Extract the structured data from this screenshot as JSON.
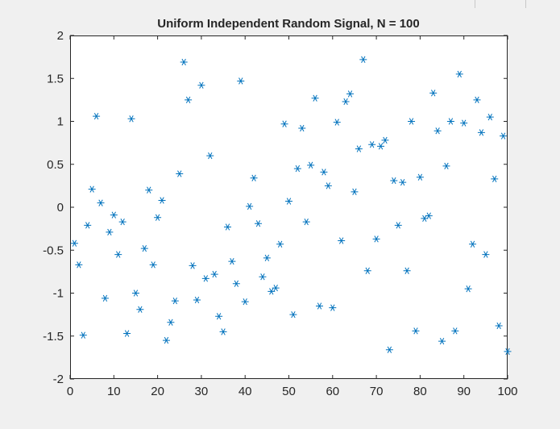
{
  "chart_data": {
    "type": "scatter",
    "title": "Uniform Independent Random Signal, N = 100",
    "xlabel": "",
    "ylabel": "",
    "xlim": [
      0,
      100
    ],
    "ylim": [
      -2,
      2
    ],
    "xticks": [
      0,
      10,
      20,
      30,
      40,
      50,
      60,
      70,
      80,
      90,
      100
    ],
    "yticks": [
      -2,
      -1.5,
      -1,
      -0.5,
      0,
      0.5,
      1,
      1.5,
      2
    ],
    "grid": false,
    "marker": "asterisk",
    "marker_color": "#0072bd",
    "series": [
      {
        "x": [
          1,
          2,
          3,
          4,
          5,
          6,
          7,
          8,
          9,
          10,
          11,
          12,
          13,
          14,
          15,
          16,
          17,
          18,
          19,
          20,
          21,
          22,
          23,
          24,
          25,
          26,
          27,
          28,
          29,
          30,
          31,
          32,
          33,
          34,
          35,
          36,
          37,
          38,
          39,
          40,
          41,
          42,
          43,
          44,
          45,
          46,
          47,
          48,
          49,
          50,
          51,
          52,
          53,
          54,
          55,
          56,
          57,
          58,
          59,
          60,
          61,
          62,
          63,
          64,
          65,
          66,
          67,
          68,
          69,
          70,
          71,
          72,
          73,
          74,
          75,
          76,
          77,
          78,
          79,
          80,
          81,
          82,
          83,
          84,
          85,
          86,
          87,
          88,
          89,
          90,
          91,
          92,
          93,
          94,
          95,
          96,
          97,
          98,
          99,
          100
        ],
        "y": [
          -0.42,
          -0.67,
          -1.49,
          -0.21,
          0.21,
          1.06,
          0.05,
          -1.06,
          -0.29,
          -0.09,
          -0.55,
          -0.17,
          -1.47,
          1.03,
          -1.0,
          -1.19,
          -0.48,
          0.2,
          -0.67,
          -0.12,
          0.08,
          -1.55,
          -1.34,
          -1.09,
          0.39,
          1.69,
          1.25,
          -0.68,
          -1.08,
          1.42,
          -0.83,
          0.6,
          -0.78,
          -1.27,
          -1.45,
          -0.23,
          -0.63,
          -0.89,
          1.47,
          -1.1,
          0.01,
          0.34,
          -0.19,
          -0.81,
          -0.59,
          -0.98,
          -0.94,
          -0.43,
          0.97,
          0.07,
          -1.25,
          0.45,
          0.92,
          -0.17,
          0.49,
          1.27,
          -1.15,
          0.41,
          0.25,
          -1.17,
          0.99,
          -0.39,
          1.23,
          1.32,
          0.18,
          0.68,
          1.72,
          -0.74,
          0.73,
          -0.37,
          0.71,
          0.78,
          -1.66,
          0.31,
          -0.21,
          0.29,
          -0.74,
          1.0,
          -1.44,
          0.35,
          -0.13,
          -0.1,
          1.33,
          0.89,
          -1.56,
          0.48,
          1.0,
          -1.44,
          1.55,
          0.98,
          -0.95,
          -0.43,
          1.25,
          0.87,
          -0.55,
          1.05,
          0.33,
          -1.38,
          0.83,
          -1.68
        ]
      }
    ]
  }
}
